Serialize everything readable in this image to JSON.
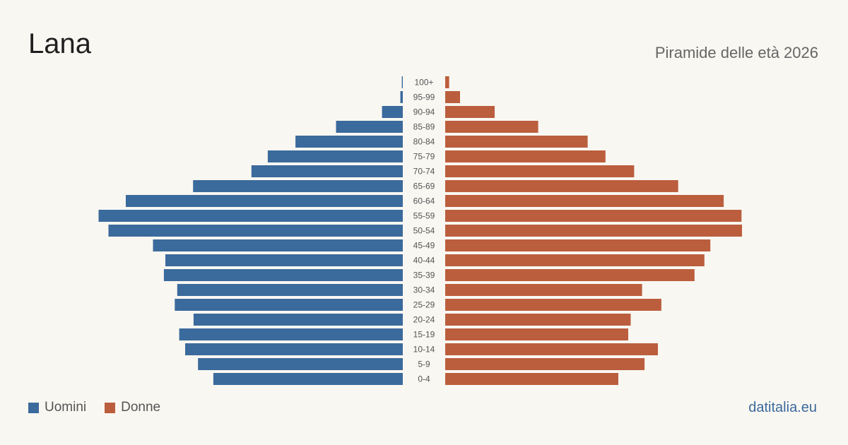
{
  "header": {
    "title": "Lana",
    "subtitle": "Piramide delle età 2026"
  },
  "legend": {
    "men_label": "Uomini",
    "women_label": "Donne"
  },
  "footer": {
    "source": "datitalia.eu"
  },
  "colors": {
    "men": "#3b6a9c",
    "women": "#bb5e3d"
  },
  "chart_data": {
    "type": "bar",
    "orientation": "horizontal-pyramid",
    "categories": [
      "100+",
      "95-99",
      "90-94",
      "85-89",
      "80-84",
      "75-79",
      "70-74",
      "65-69",
      "60-64",
      "55-59",
      "50-54",
      "45-49",
      "40-44",
      "35-39",
      "30-34",
      "25-29",
      "20-24",
      "15-19",
      "10-14",
      "5-9",
      "0-4"
    ],
    "series": [
      {
        "name": "Uomini",
        "values": [
          0.2,
          0.5,
          4.2,
          13.5,
          21.7,
          27.3,
          30.6,
          42.4,
          56.0,
          61.5,
          59.5,
          50.5,
          48.0,
          48.3,
          45.6,
          46.1,
          42.3,
          45.2,
          44.0,
          41.4,
          38.3
        ]
      },
      {
        "name": "Donne",
        "values": [
          0.8,
          3.0,
          10.0,
          18.8,
          28.8,
          32.4,
          38.2,
          47.1,
          56.3,
          59.9,
          60.0,
          53.6,
          52.4,
          50.4,
          39.8,
          43.7,
          37.5,
          37.0,
          43.0,
          40.3,
          35.0
        ]
      }
    ],
    "xlim": [
      0,
      63
    ],
    "grid": false,
    "legend_position": "bottom-left"
  }
}
